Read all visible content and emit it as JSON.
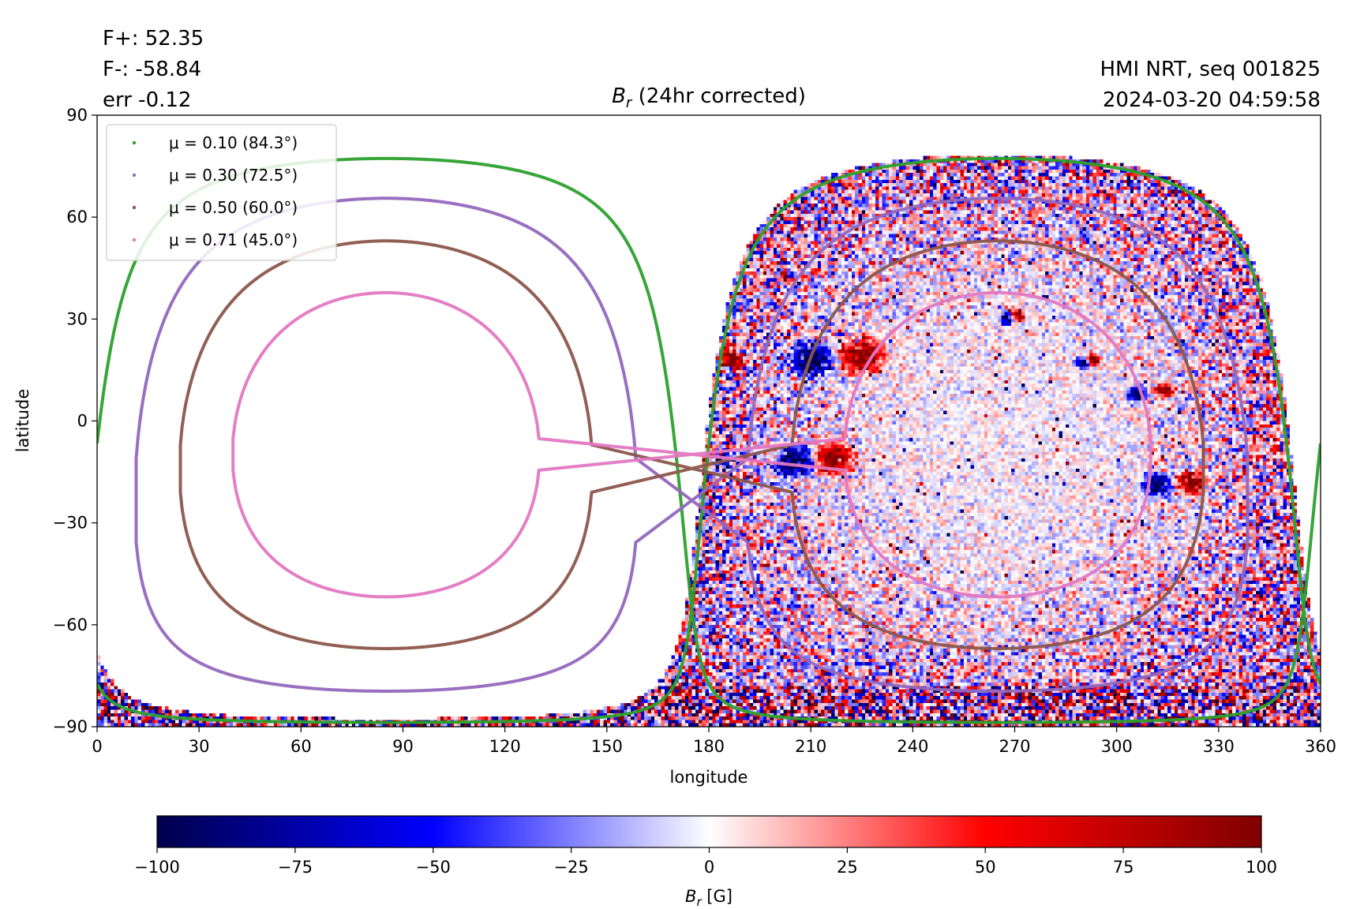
{
  "header": {
    "stats": [
      "F+: 52.35",
      "F-: -58.84",
      "err -0.12"
    ],
    "title_var": "B",
    "title_sub": "r",
    "title_rest": " (24hr corrected)",
    "info": [
      "HMI NRT, seq 001825",
      "2024-03-20 04:59:58"
    ]
  },
  "chart_data": {
    "type": "heatmap",
    "title": "Br (24hr corrected)",
    "xlabel": "longitude",
    "ylabel": "latitude",
    "xlim": [
      0,
      360
    ],
    "ylim": [
      -90,
      90
    ],
    "x_ticks": [
      "0",
      "30",
      "60",
      "90",
      "120",
      "150",
      "180",
      "210",
      "240",
      "270",
      "300",
      "330",
      "360"
    ],
    "y_ticks": [
      "90",
      "60",
      "30",
      "0",
      "−30",
      "−60",
      "−90"
    ],
    "grid": true,
    "disk_center": {
      "lon": 265,
      "lat": -7
    },
    "legend": {
      "placement": "top-left",
      "entries": [
        {
          "label": "μ = 0.10 (84.3°)",
          "color": "#2ca02c",
          "mu": 0.1
        },
        {
          "label": "μ = 0.30 (72.5°)",
          "color": "#9467bd",
          "mu": 0.3
        },
        {
          "label": "μ = 0.50 (60.0°)",
          "color": "#8c564b",
          "mu": 0.5
        },
        {
          "label": "μ = 0.71 (45.0°)",
          "color": "#e377c2",
          "mu": 0.71
        }
      ]
    },
    "colorbar": {
      "min": -100,
      "max": 100,
      "ticks": [
        "−100",
        "−75",
        "−50",
        "−25",
        "0",
        "25",
        "50",
        "75",
        "100"
      ],
      "label_var": "B",
      "label_sub": "r",
      "label_unit": " [G]",
      "colors": [
        "#00004c",
        "#0000ff",
        "#ffffff",
        "#ff0000",
        "#800000"
      ]
    },
    "active_regions": [
      {
        "lon": 181,
        "lat": 17,
        "neg_offset": -2,
        "pos_offset": 6,
        "size": 6
      },
      {
        "lon": 217,
        "lat": 18,
        "neg_offset": -7,
        "pos_offset": 8,
        "size": 9
      },
      {
        "lon": 181,
        "lat": -12,
        "neg_offset": 2,
        "pos_offset": -2,
        "size": 6
      },
      {
        "lon": 211,
        "lat": -12,
        "neg_offset": -6,
        "pos_offset": 6,
        "size": 8
      },
      {
        "lon": 316,
        "lat": -19,
        "neg_offset": -4,
        "pos_offset": 6,
        "size": 6
      },
      {
        "lon": 309,
        "lat": 8,
        "neg_offset": -3,
        "pos_offset": 5,
        "size": 4
      },
      {
        "lon": 268,
        "lat": 30,
        "neg_offset": 0,
        "pos_offset": 3,
        "size": 3
      },
      {
        "lon": 290,
        "lat": 17,
        "neg_offset": 0,
        "pos_offset": 3,
        "size": 3
      }
    ]
  }
}
